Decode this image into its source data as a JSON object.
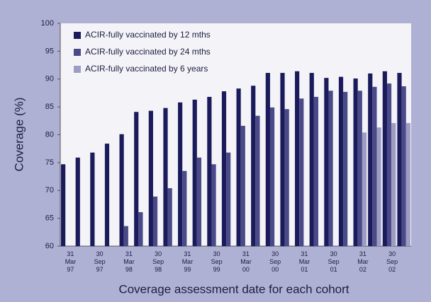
{
  "chart_data": {
    "type": "bar",
    "y_label": "Coverage (%)",
    "x_label": "Coverage assessment date for each cohort",
    "categories": [
      "31 Mar 97",
      null,
      "30 Sep 97",
      null,
      "31 Mar 98",
      null,
      "30 Sep 98",
      null,
      "31 Mar 99",
      null,
      "30 Sep 99",
      null,
      "31 Mar 00",
      null,
      "30 Sep 00",
      null,
      "31 Mar 01",
      null,
      "30 Sep 01",
      null,
      "31 Mar 02",
      null,
      "30 Sep 02",
      null
    ],
    "series": [
      {
        "name": "ACIR-fully vaccinated by 12 mths",
        "color": "#1b1b5c",
        "values": [
          74.7,
          75.9,
          76.8,
          78.4,
          80.1,
          84.1,
          84.3,
          84.8,
          85.8,
          86.3,
          86.8,
          87.8,
          88.3,
          88.8,
          91.1,
          91.1,
          91.4,
          91.1,
          90.2,
          90.4,
          90.1,
          91.0,
          91.4,
          91.1
        ]
      },
      {
        "name": "ACIR-fully vaccinated by 24 mths",
        "color": "#4a4a88",
        "values": [
          null,
          null,
          null,
          null,
          63.6,
          66.1,
          68.9,
          70.4,
          73.5,
          75.9,
          74.7,
          76.8,
          81.6,
          83.4,
          84.9,
          84.6,
          86.5,
          86.8,
          87.9,
          87.7,
          87.9,
          88.6,
          89.2,
          88.7
        ]
      },
      {
        "name": "ACIR-fully vaccinated by 6 years",
        "color": "#9d9dc4",
        "values": [
          null,
          null,
          null,
          null,
          null,
          null,
          null,
          null,
          null,
          null,
          null,
          null,
          null,
          null,
          null,
          null,
          null,
          null,
          null,
          null,
          80.4,
          81.3,
          82.1,
          82.1
        ]
      }
    ],
    "ylim": [
      60,
      100
    ],
    "yticks": [
      60,
      65,
      70,
      75,
      80,
      85,
      90,
      95,
      100
    ]
  }
}
